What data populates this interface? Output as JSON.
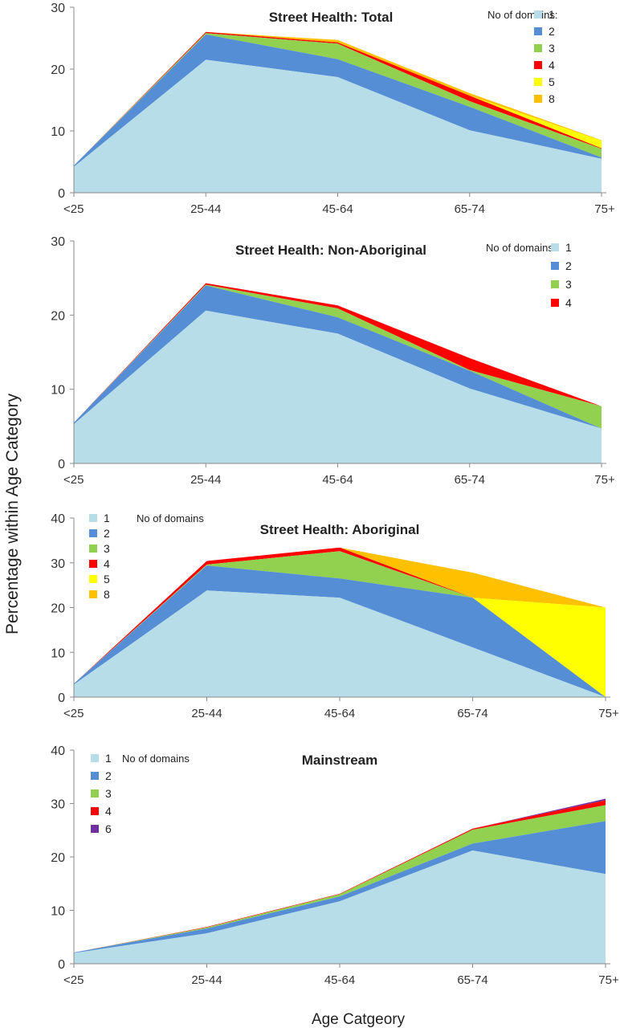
{
  "figure": {
    "ylabel": "Percentage within Age Category",
    "xlabel": "Age Catgeory"
  },
  "colors": {
    "1": "#b7dde8",
    "2": "#558ed5",
    "3": "#92d050",
    "4": "#ff0000",
    "5": "#ffff00",
    "6": "#7030a0",
    "8": "#ffc000"
  },
  "chart_data": [
    {
      "type": "area",
      "title": "Street Health: Total",
      "legend_title": "No of domains:",
      "legend_position": "top-right",
      "categories": [
        "<25",
        "25-44",
        "45-64",
        "65-74",
        "75+"
      ],
      "ylim": [
        0,
        30
      ],
      "yticks": [
        "0",
        "10",
        "20",
        "30"
      ],
      "series": [
        {
          "name": "1",
          "values": [
            4.2,
            21.5,
            18.7,
            10.1,
            5.5
          ]
        },
        {
          "name": "2",
          "values": [
            0.2,
            4.1,
            2.9,
            3.8,
            0.2
          ]
        },
        {
          "name": "3",
          "values": [
            0,
            0.2,
            2.5,
            0.9,
            1.4
          ]
        },
        {
          "name": "4",
          "values": [
            0,
            0.2,
            0.2,
            0.9,
            0.1
          ]
        },
        {
          "name": "5",
          "values": [
            0,
            0,
            0,
            0,
            1.2
          ]
        },
        {
          "name": "8",
          "values": [
            0,
            0,
            0.4,
            0.4,
            0.1
          ]
        }
      ]
    },
    {
      "type": "area",
      "title": "Street Health: Non-Aboriginal",
      "legend_title": "No of domains:",
      "legend_position": "top-right",
      "categories": [
        "<25",
        "25-44",
        "45-64",
        "65-74",
        "75+"
      ],
      "ylim": [
        0,
        30
      ],
      "yticks": [
        "0",
        "10",
        "20",
        "30"
      ],
      "series": [
        {
          "name": "1",
          "values": [
            5.3,
            20.6,
            17.5,
            10.1,
            4.7
          ]
        },
        {
          "name": "2",
          "values": [
            0.2,
            3.4,
            2.2,
            2.4,
            0
          ]
        },
        {
          "name": "3",
          "values": [
            0,
            0.1,
            1.2,
            0.1,
            3.0
          ]
        },
        {
          "name": "4",
          "values": [
            0,
            0.2,
            0.4,
            1.6,
            0
          ]
        }
      ]
    },
    {
      "type": "area",
      "title": "Street Health: Aboriginal",
      "legend_title": "No of domains",
      "legend_position": "top-left",
      "categories": [
        "<25",
        "25-44",
        "45-64",
        "65-74",
        "75+"
      ],
      "ylim": [
        0,
        40
      ],
      "yticks": [
        "0",
        "10",
        "20",
        "30",
        "40"
      ],
      "series": [
        {
          "name": "1",
          "values": [
            2.8,
            23.8,
            22.2,
            11.1,
            0
          ]
        },
        {
          "name": "2",
          "values": [
            0.2,
            5.6,
            4.3,
            11.1,
            0
          ]
        },
        {
          "name": "3",
          "values": [
            0,
            0.2,
            6.1,
            0,
            0
          ]
        },
        {
          "name": "4",
          "values": [
            0,
            0.8,
            0.8,
            0,
            0
          ]
        },
        {
          "name": "5",
          "values": [
            0,
            0,
            0,
            0,
            20
          ]
        },
        {
          "name": "8",
          "values": [
            0,
            0,
            0,
            5.6,
            0
          ]
        }
      ]
    },
    {
      "type": "area",
      "title": "Mainstream",
      "legend_title": "No of domains",
      "legend_position": "top-left",
      "categories": [
        "<25",
        "25-44",
        "45-64",
        "65-74",
        "75+"
      ],
      "ylim": [
        0,
        40
      ],
      "yticks": [
        "0",
        "10",
        "20",
        "30",
        "40"
      ],
      "series": [
        {
          "name": "1",
          "values": [
            2.0,
            5.7,
            11.7,
            21.2,
            16.8
          ]
        },
        {
          "name": "2",
          "values": [
            0.1,
            0.9,
            0.9,
            1.3,
            9.9
          ]
        },
        {
          "name": "3",
          "values": [
            0,
            0.2,
            0.4,
            2.6,
            3.0
          ]
        },
        {
          "name": "4",
          "values": [
            0,
            0.1,
            0.1,
            0.2,
            0.9
          ]
        },
        {
          "name": "6",
          "values": [
            0,
            0,
            0,
            0,
            0.3
          ]
        }
      ]
    }
  ]
}
